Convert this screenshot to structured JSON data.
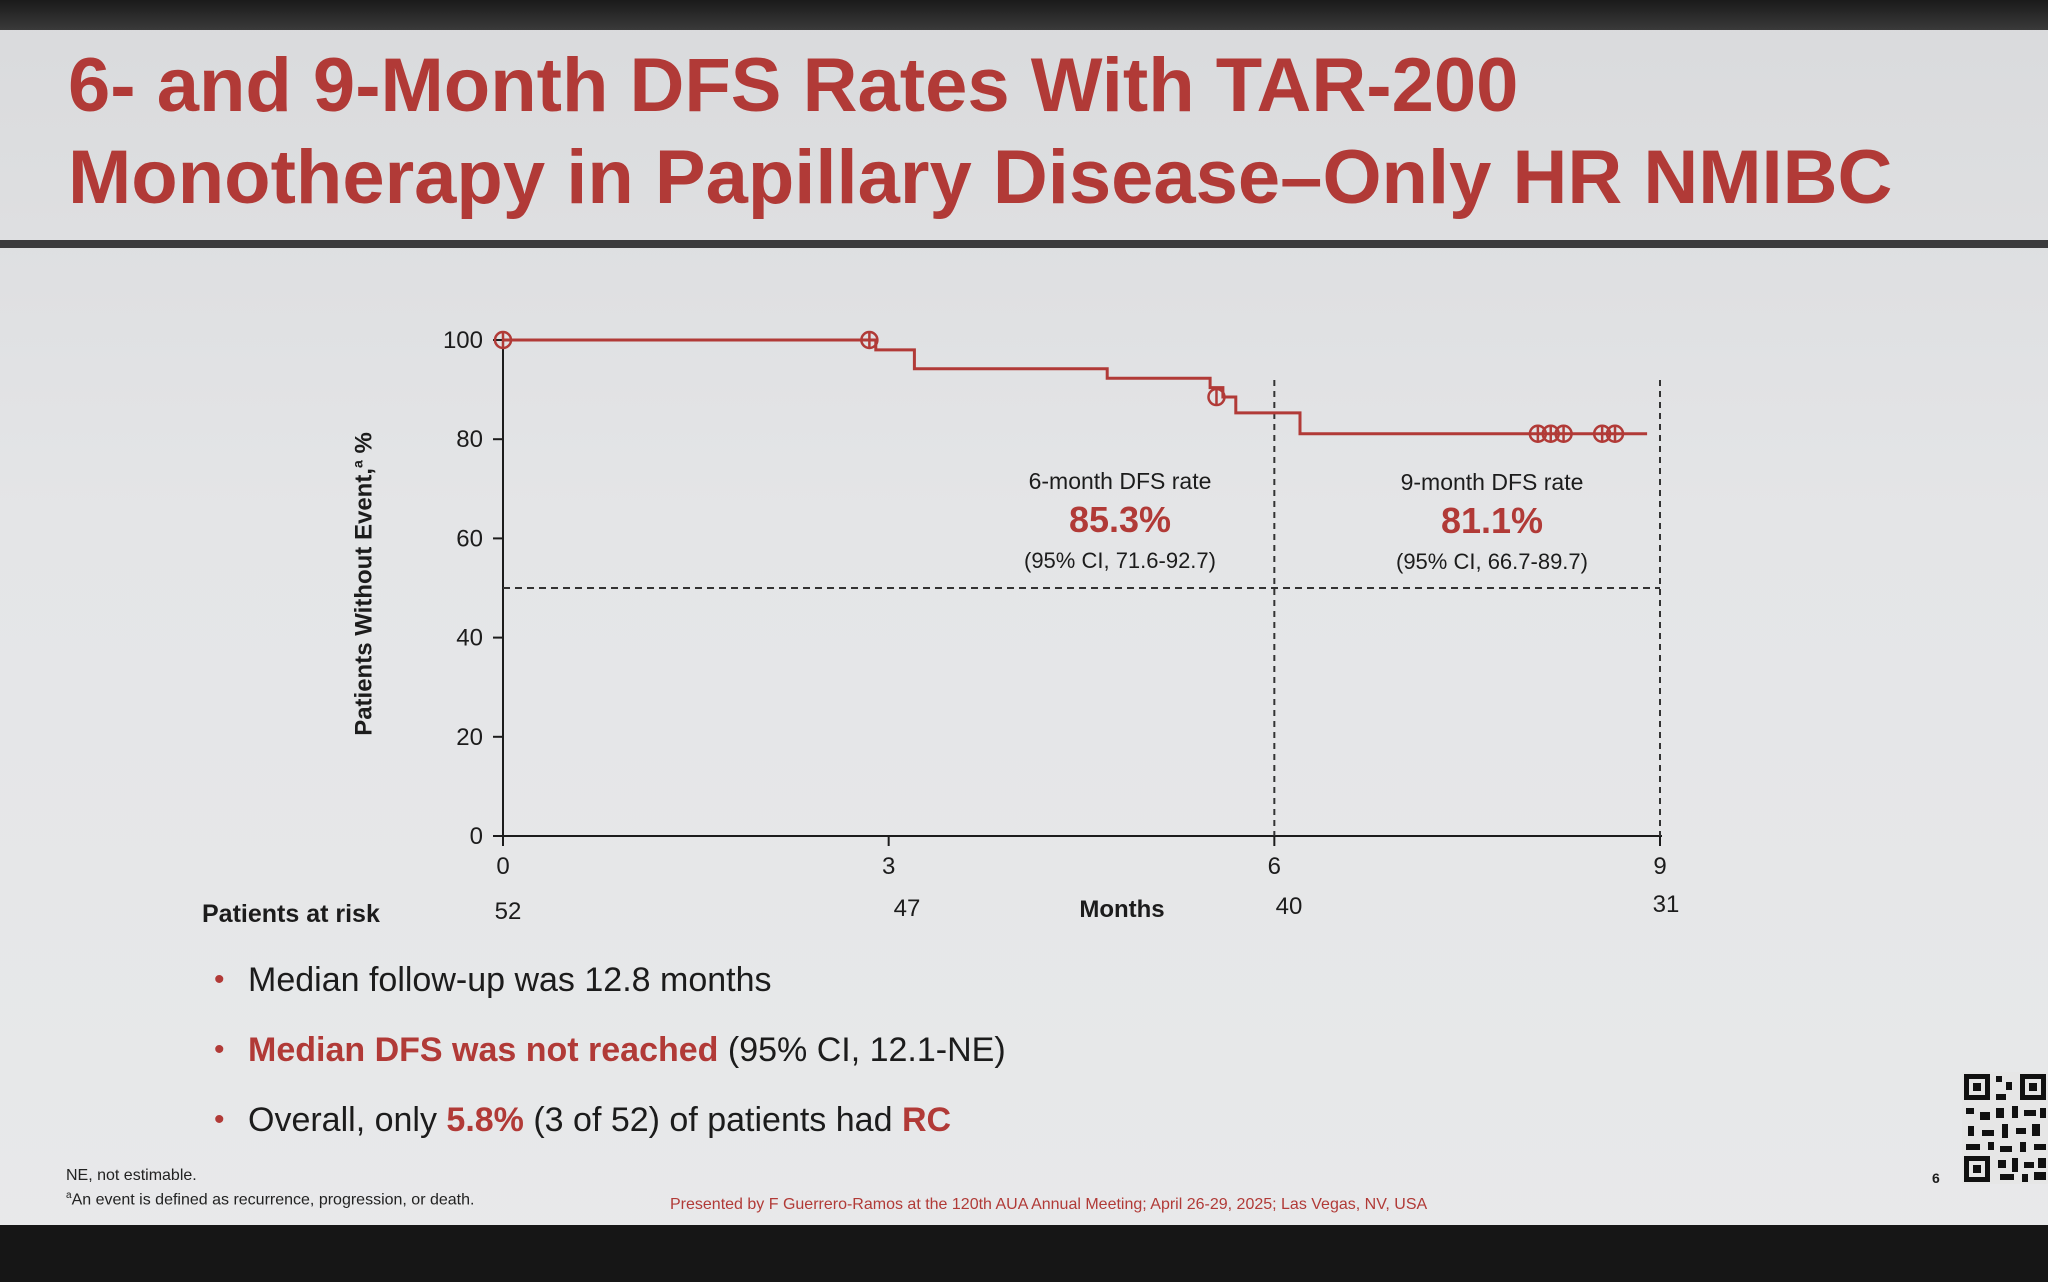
{
  "title": "6- and 9-Month DFS Rates With TAR-200 Monotherapy in Papillary Disease–Only HR NMIBC",
  "chart_data": {
    "type": "line",
    "subtype": "kaplan-meier",
    "ylabel": "Patients Without Event,",
    "ylabel_sup": "a",
    "ylabel_suffix": " %",
    "xlabel": "Months",
    "ylim": [
      0,
      100
    ],
    "xlim": [
      0,
      9
    ],
    "yticks": [
      0,
      20,
      40,
      60,
      80,
      100
    ],
    "xticks": [
      0,
      3,
      6,
      9
    ],
    "series": [
      {
        "color": "#b13a37",
        "steps": [
          [
            0,
            100
          ],
          [
            2.9,
            100
          ],
          [
            2.9,
            98
          ],
          [
            3.2,
            98
          ],
          [
            3.2,
            94.2
          ],
          [
            4.7,
            94.2
          ],
          [
            4.7,
            92.3
          ],
          [
            5.5,
            92.3
          ],
          [
            5.5,
            90.4
          ],
          [
            5.6,
            90.4
          ],
          [
            5.6,
            88.5
          ],
          [
            5.7,
            88.5
          ],
          [
            5.7,
            85.3
          ],
          [
            6.2,
            85.3
          ],
          [
            6.2,
            81.1
          ],
          [
            8.9,
            81.1
          ]
        ],
        "censored": [
          [
            0,
            100
          ],
          [
            2.85,
            100
          ],
          [
            5.55,
            88.5
          ],
          [
            8.05,
            81.1
          ],
          [
            8.15,
            81.1
          ],
          [
            8.25,
            81.1
          ],
          [
            8.55,
            81.1
          ],
          [
            8.65,
            81.1
          ]
        ]
      }
    ],
    "reference_lines": {
      "horizontal": 50,
      "vertical": [
        6,
        9
      ]
    },
    "annotations": [
      {
        "label": "6-month DFS rate",
        "value": "85.3%",
        "ci": "(95% CI, 71.6-92.7)"
      },
      {
        "label": "9-month DFS rate",
        "value": "81.1%",
        "ci": "(95% CI, 66.7-89.7)"
      }
    ],
    "at_risk": {
      "label": "Patients at risk",
      "x": [
        0,
        3,
        6,
        9
      ],
      "values": [
        "52",
        "47",
        "40",
        "31"
      ]
    },
    "grid": false
  },
  "bullets": {
    "b1": "Median follow-up was 12.8 months",
    "b2_red": "Median DFS was not reached",
    "b2_rest": " (95% CI, 12.1-NE)",
    "b3_pre": "Overall, only ",
    "b3_red": "5.8%",
    "b3_mid": " (3 of 52) of patients had ",
    "b3_red2": "RC"
  },
  "footnotes": {
    "ne": "NE, not estimable.",
    "event_sup": "a",
    "event": "An event is defined as recurrence, progression, or death."
  },
  "presented": "Presented by F Guerrero-Ramos at the 120th AUA Annual Meeting; April 26-29, 2025; Las Vegas, NV, USA",
  "page_number": "6",
  "colors": {
    "accent": "#b13a37",
    "text": "#1c1c1c",
    "background": "#e4e5e7"
  }
}
